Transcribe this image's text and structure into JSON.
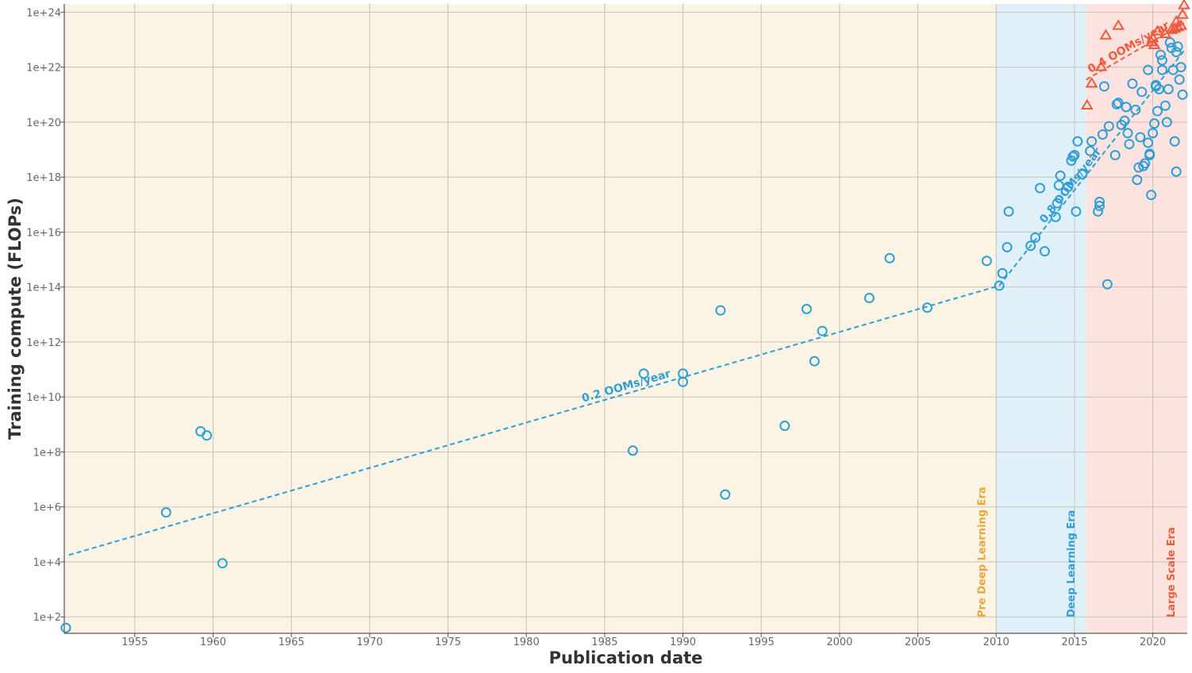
{
  "chart_data": {
    "type": "scatter",
    "title": "",
    "xlabel": "Publication date",
    "ylabel": "Training compute (FLOPs)",
    "xlim": [
      1950.5,
      2022.2
    ],
    "ylim_log10": [
      1.4,
      24.3
    ],
    "y_scale": "log",
    "grid": true,
    "x_ticks": [
      1955,
      1960,
      1965,
      1970,
      1975,
      1980,
      1985,
      1990,
      1995,
      2000,
      2005,
      2010,
      2015,
      2020
    ],
    "x_tick_labels": [
      "1955",
      "1960",
      "1965",
      "1970",
      "1975",
      "1980",
      "1985",
      "1990",
      "1995",
      "2000",
      "2005",
      "2010",
      "2015",
      "2020"
    ],
    "y_ticks_log10": [
      2,
      4,
      6,
      8,
      10,
      12,
      14,
      16,
      18,
      20,
      22,
      24
    ],
    "y_tick_labels": [
      "1e+2",
      "1e+4",
      "1e+6",
      "1e+8",
      "1e+10",
      "1e+12",
      "1e+14",
      "1e+16",
      "1e+18",
      "1e+20",
      "1e+22",
      "1e+24"
    ],
    "eras": [
      {
        "name": "Pre Deep Learning Era",
        "start": 1950.5,
        "end": 2010.0,
        "fill": "#fbf3e4",
        "text_color": "#e8a838"
      },
      {
        "name": "Deep Learning Era",
        "start": 2010.0,
        "end": 2015.75,
        "fill": "#dff0f8",
        "text_color": "#2e9fd6"
      },
      {
        "name": "Large Scale Era",
        "start": 2015.75,
        "end": 2022.2,
        "fill": "#fde3df",
        "text_color": "#f05a3c"
      }
    ],
    "trends": [
      {
        "label": "0.2 OOMs/year",
        "color": "#2e9fd6",
        "x": [
          1950.8,
          2010.2
        ],
        "y_log10": [
          4.25,
          14.05
        ]
      },
      {
        "label": "0.8 OOMs/year",
        "color": "#2e9fd6",
        "x": [
          2010.2,
          2022.0
        ],
        "y_log10": [
          14.05,
          22.6
        ]
      },
      {
        "label": "0.4 OOMs/year",
        "color": "#f05a3c",
        "x": [
          2015.75,
          2022.0
        ],
        "y_log10": [
          21.55,
          23.6
        ]
      }
    ],
    "series": [
      {
        "marker": "circle",
        "color": "#2e9fd6",
        "x": [
          1950.6,
          1957.0,
          1959.2,
          1959.6,
          1960.6,
          1986.8,
          1987.5,
          1990.0,
          1990.0,
          1992.4,
          1992.7,
          1996.5,
          1997.9,
          1998.4,
          1998.9,
          2001.9,
          2003.2,
          2005.6,
          2009.4,
          2010.2,
          2010.4,
          2010.7,
          2010.8,
          2012.2,
          2012.5,
          2012.8,
          2013.1,
          2013.8,
          2013.9,
          2014.0,
          2014.1,
          2014.6,
          2014.8,
          2014.9,
          2015.0,
          2015.1,
          2015.2,
          2015.5,
          2016.0,
          2016.1,
          2016.5,
          2016.6,
          2016.6,
          2016.8,
          2016.9,
          2017.1,
          2017.2,
          2017.6,
          2017.7,
          2017.8,
          2018.0,
          2018.2,
          2018.3,
          2018.4,
          2018.5,
          2018.7,
          2018.9,
          2019.0,
          2019.1,
          2019.2,
          2019.3,
          2019.4,
          2019.5,
          2019.7,
          2019.7,
          2019.8,
          2019.9,
          2020.0,
          2020.1,
          2020.2,
          2020.3,
          2020.4,
          2020.5,
          2020.6,
          2020.8,
          2020.9,
          2021.0,
          2021.1,
          2021.2,
          2021.3,
          2021.4,
          2021.5,
          2021.6,
          2021.7,
          2021.8,
          2021.9,
          2020.6,
          2020.2,
          2021.5,
          2019.8
        ],
        "y_log10": [
          1.6,
          5.8,
          8.75,
          8.6,
          3.95,
          8.05,
          10.85,
          10.85,
          10.55,
          13.15,
          6.45,
          8.95,
          13.2,
          11.3,
          12.4,
          13.6,
          15.05,
          13.25,
          14.95,
          14.05,
          14.5,
          15.45,
          16.75,
          15.5,
          15.8,
          17.6,
          15.3,
          16.55,
          17.05,
          17.7,
          18.05,
          17.65,
          18.6,
          18.75,
          18.8,
          16.75,
          19.3,
          18.1,
          18.95,
          19.3,
          16.75,
          16.95,
          17.1,
          19.55,
          21.3,
          14.1,
          19.85,
          18.8,
          20.65,
          20.7,
          19.9,
          20.05,
          20.55,
          19.6,
          19.2,
          21.4,
          20.45,
          17.9,
          18.35,
          19.45,
          21.1,
          18.4,
          18.5,
          21.9,
          19.25,
          18.8,
          17.35,
          19.6,
          19.95,
          21.3,
          20.4,
          21.2,
          22.45,
          22.25,
          20.6,
          20.0,
          21.2,
          22.9,
          22.7,
          21.9,
          19.3,
          18.2,
          22.75,
          21.55,
          22.0,
          21.0,
          21.9,
          21.35,
          22.55,
          18.85
        ]
      },
      {
        "marker": "triangle",
        "color": "#f05a3c",
        "x": [
          2015.8,
          2016.1,
          2016.7,
          2017.0,
          2017.8,
          2019.9,
          2020.0,
          2020.1,
          2020.3,
          2020.8,
          2021.2,
          2021.4,
          2021.6,
          2021.8,
          2021.9,
          2022.0,
          2021.5
        ],
        "y_log10": [
          20.6,
          21.4,
          22.0,
          23.15,
          23.5,
          22.9,
          23.05,
          22.8,
          23.3,
          23.2,
          23.35,
          23.4,
          23.45,
          23.5,
          23.9,
          24.25,
          23.65
        ]
      }
    ]
  }
}
